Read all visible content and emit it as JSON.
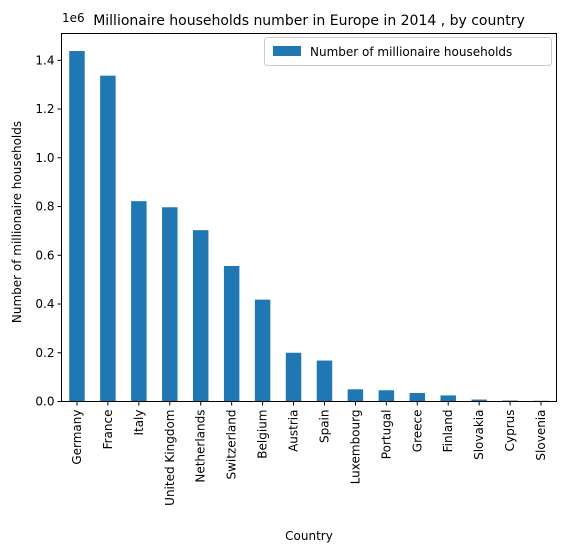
{
  "chart_data": {
    "type": "bar",
    "title": "Millionaire households number in Europe in 2014 , by country",
    "xlabel": "Country",
    "ylabel": "Number of millionaire households",
    "offset_label": "1e6",
    "categories": [
      "Germany",
      "France",
      "Italy",
      "United Kingdom",
      "Netherlands",
      "Switzerland",
      "Belgium",
      "Austria",
      "Spain",
      "Luxembourg",
      "Portugal",
      "Greece",
      "Finland",
      "Slovakia",
      "Cyprus",
      "Slovenia"
    ],
    "series": [
      {
        "name": "Number of millionaire households",
        "color": "#1f77b4",
        "values": [
          1438000,
          1337000,
          822000,
          797000,
          703000,
          556000,
          418000,
          200000,
          168000,
          50000,
          46000,
          35000,
          25000,
          8000,
          4000,
          3000
        ]
      }
    ],
    "ylim": [
      0,
      1510000
    ],
    "yticks": [
      0,
      200000,
      400000,
      600000,
      800000,
      1000000,
      1200000,
      1400000
    ],
    "ytick_labels": [
      "0.0",
      "0.2",
      "0.4",
      "0.6",
      "0.8",
      "1.0",
      "1.2",
      "1.4"
    ],
    "grid": false,
    "legend_position": "top-right"
  }
}
